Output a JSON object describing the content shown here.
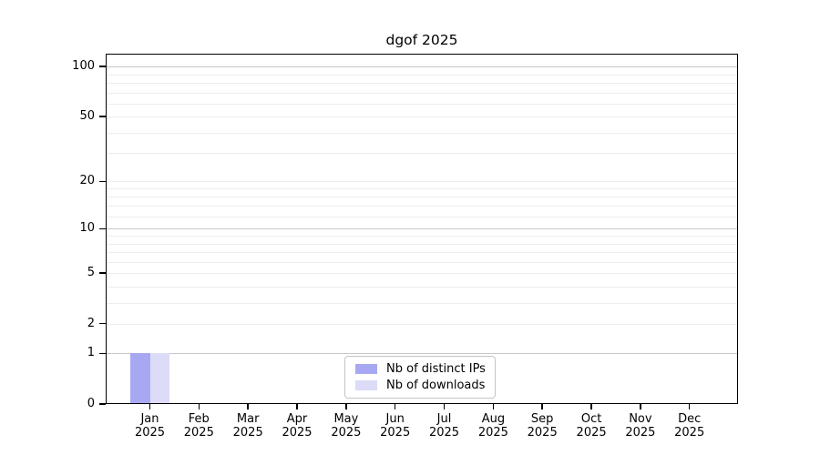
{
  "chart_data": {
    "type": "bar",
    "title": "dgof 2025",
    "categories": [
      "Jan",
      "Feb",
      "Mar",
      "Apr",
      "May",
      "Jun",
      "Jul",
      "Aug",
      "Sep",
      "Oct",
      "Nov",
      "Dec"
    ],
    "category_year": "2025",
    "series": [
      {
        "name": "Nb of distinct IPs",
        "color": "#a8a8f2",
        "values": [
          1,
          0,
          0,
          0,
          0,
          0,
          0,
          0,
          0,
          0,
          0,
          0
        ]
      },
      {
        "name": "Nb of downloads",
        "color": "#dcdcf8",
        "values": [
          1,
          0,
          0,
          0,
          0,
          0,
          0,
          0,
          0,
          0,
          0,
          0
        ]
      }
    ],
    "y_axis": {
      "scale": "log1p",
      "tick_labels": [
        0,
        1,
        2,
        5,
        10,
        20,
        50,
        100
      ],
      "major_gridlines": [
        1,
        10,
        100
      ],
      "minor_gridlines": [
        3,
        4,
        6,
        7,
        8,
        9,
        12,
        14,
        16,
        18,
        30,
        40,
        60,
        70,
        80,
        90
      ],
      "ylim": [
        0,
        119
      ]
    },
    "legend": {
      "position": "bottom-center"
    },
    "grid": true,
    "colors": {
      "major_grid": "#c8c8c8",
      "minor_grid": "#ededed",
      "axis": "#000000",
      "background": "#ffffff"
    }
  }
}
